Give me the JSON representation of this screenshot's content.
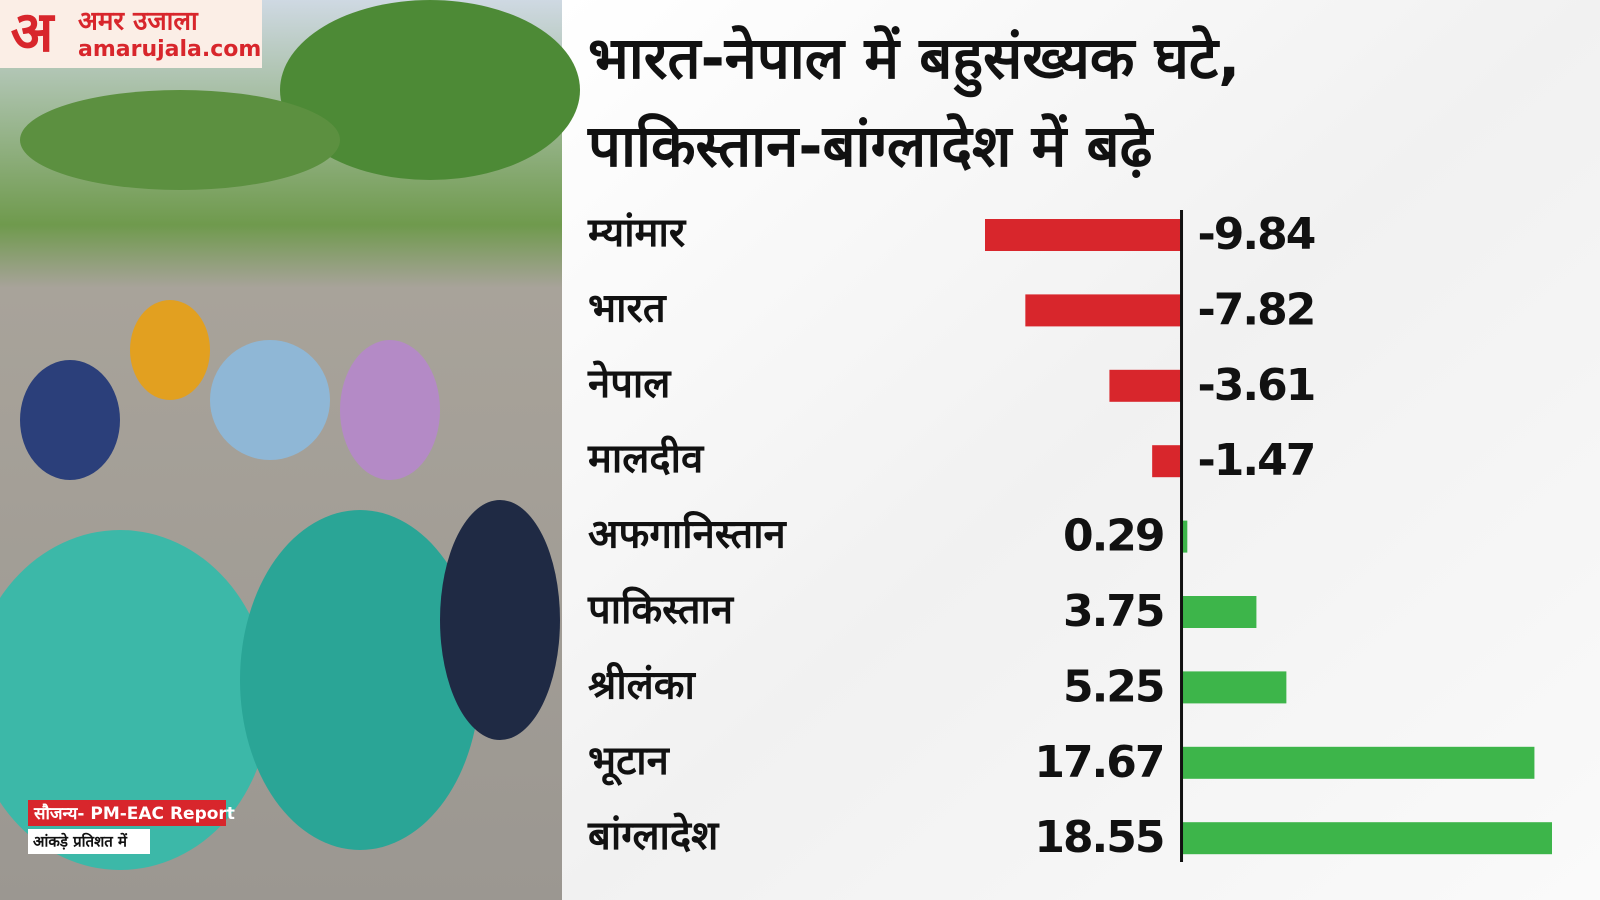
{
  "logo": {
    "name": "अमर उजाला",
    "site": "amarujala.com"
  },
  "source": "सौजन्य- PM-EAC Report",
  "note": "आंकड़े प्रतिशत में",
  "chart_data": {
    "type": "bar",
    "orientation": "horizontal",
    "title": [
      "भारत-नेपाल में बहुसंख्यक घटे,",
      "पाकिस्तान-बांग्लादेश में बढ़े"
    ],
    "categories": [
      "म्यांमार",
      "भारत",
      "नेपाल",
      "मालदीव",
      "अफगानिस्तान",
      "पाकिस्तान",
      "श्रीलंका",
      "भूटान",
      "बांग्लादेश"
    ],
    "values": [
      -9.84,
      -7.82,
      -3.61,
      -1.47,
      0.29,
      3.75,
      5.25,
      17.67,
      18.55
    ],
    "negative_color": "#d8262c",
    "positive_color": "#3db54a"
  }
}
